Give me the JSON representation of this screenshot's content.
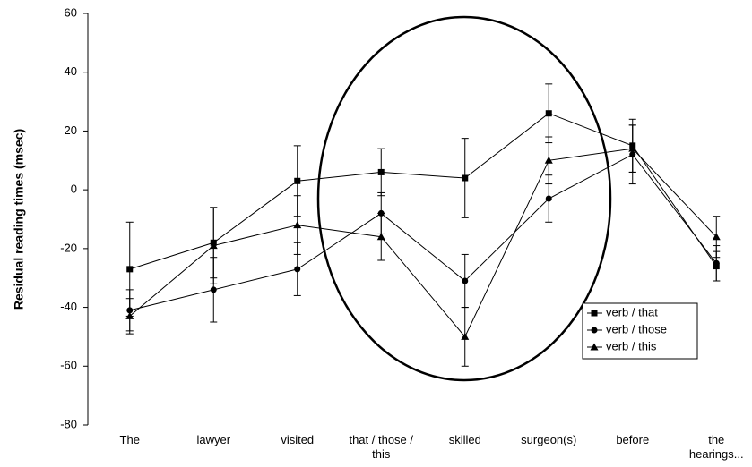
{
  "chart_data": {
    "type": "line",
    "ylabel": "Residual reading times (msec)",
    "categories": [
      "The",
      "lawyer",
      "visited",
      "that / those / this",
      "skilled",
      "surgeon(s)",
      "before",
      "the hearings..."
    ],
    "series": [
      {
        "name": "verb / that",
        "color": "#000000",
        "marker": "square",
        "values": [
          -27,
          -18,
          3,
          6,
          4,
          26,
          15,
          -26
        ],
        "errors": [
          16,
          12,
          12,
          8,
          13.5,
          10,
          9,
          5
        ]
      },
      {
        "name": "verb / those",
        "color": "#000000",
        "marker": "circle",
        "values": [
          -41,
          -34,
          -27,
          -8,
          -31,
          -3,
          12,
          -25
        ],
        "errors": [
          7,
          11,
          9,
          7,
          9,
          8,
          10,
          6
        ]
      },
      {
        "name": "verb / this",
        "color": "#000000",
        "marker": "triangle",
        "values": [
          -43,
          -19,
          -12,
          -16,
          -50,
          10,
          14,
          -16
        ],
        "errors": [
          6,
          13,
          10,
          8,
          10,
          8,
          8,
          7
        ]
      }
    ],
    "ylim": [
      -80,
      60
    ],
    "yticks": [
      -80,
      -60,
      -40,
      -20,
      0,
      20,
      40,
      60
    ],
    "legend": "lower right",
    "grid": false
  }
}
